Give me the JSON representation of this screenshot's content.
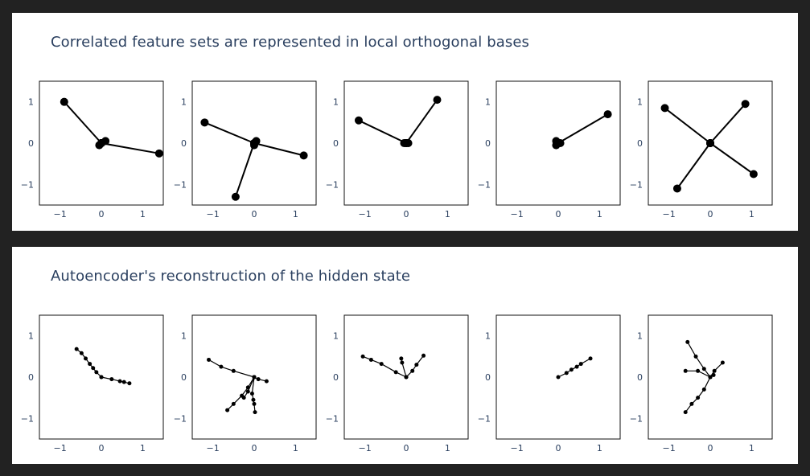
{
  "sections": [
    {
      "title": "Correlated feature sets are represented in local orthogonal bases",
      "marker_size": "large",
      "line_weight": "thick",
      "chart_data": [
        {
          "type": "scatter",
          "mode": "lines+markers",
          "xlim": [
            -1.5,
            1.5
          ],
          "ylim": [
            -1.5,
            1.5
          ],
          "xticks": [
            -1,
            0,
            1
          ],
          "yticks": [
            -1,
            0,
            1
          ],
          "xticklabels": [
            "−1",
            "0",
            "1"
          ],
          "yticklabels": [
            "−1",
            "0",
            "1"
          ],
          "segments": [
            [
              [
                0,
                0
              ],
              [
                -0.9,
                1.0
              ]
            ],
            [
              [
                0,
                0
              ],
              [
                1.4,
                -0.25
              ]
            ],
            [
              [
                0,
                0
              ],
              [
                0.1,
                0.05
              ]
            ],
            [
              [
                0,
                0
              ],
              [
                -0.05,
                -0.05
              ]
            ]
          ]
        },
        {
          "type": "scatter",
          "mode": "lines+markers",
          "xlim": [
            -1.5,
            1.5
          ],
          "ylim": [
            -1.5,
            1.5
          ],
          "xticks": [
            -1,
            0,
            1
          ],
          "yticks": [
            -1,
            0,
            1
          ],
          "xticklabels": [
            "−1",
            "0",
            "1"
          ],
          "yticklabels": [
            "−1",
            "0",
            "1"
          ],
          "segments": [
            [
              [
                0,
                0
              ],
              [
                -1.2,
                0.5
              ]
            ],
            [
              [
                0,
                0
              ],
              [
                1.2,
                -0.3
              ]
            ],
            [
              [
                0,
                0
              ],
              [
                -0.45,
                -1.3
              ]
            ],
            [
              [
                0,
                0
              ],
              [
                0.05,
                0.05
              ]
            ],
            [
              [
                0,
                0
              ],
              [
                0.0,
                -0.05
              ]
            ]
          ]
        },
        {
          "type": "scatter",
          "mode": "lines+markers",
          "xlim": [
            -1.5,
            1.5
          ],
          "ylim": [
            -1.5,
            1.5
          ],
          "xticks": [
            -1,
            0,
            1
          ],
          "yticks": [
            -1,
            0,
            1
          ],
          "xticklabels": [
            "−1",
            "0",
            "1"
          ],
          "yticklabels": [
            "−1",
            "0",
            "1"
          ],
          "segments": [
            [
              [
                0,
                0
              ],
              [
                -1.15,
                0.55
              ]
            ],
            [
              [
                0,
                0
              ],
              [
                0.75,
                1.05
              ]
            ],
            [
              [
                0,
                0
              ],
              [
                -0.05,
                0.0
              ]
            ],
            [
              [
                0,
                0
              ],
              [
                0.05,
                0.0
              ]
            ]
          ]
        },
        {
          "type": "scatter",
          "mode": "lines+markers",
          "xlim": [
            -1.5,
            1.5
          ],
          "ylim": [
            -1.5,
            1.5
          ],
          "xticks": [
            -1,
            0,
            1
          ],
          "yticks": [
            -1,
            0,
            1
          ],
          "xticklabels": [
            "−1",
            "0",
            "1"
          ],
          "yticklabels": [
            "−1",
            "0",
            "1"
          ],
          "segments": [
            [
              [
                0,
                0
              ],
              [
                1.2,
                0.7
              ]
            ],
            [
              [
                0,
                0
              ],
              [
                -0.05,
                0.05
              ]
            ],
            [
              [
                0,
                0
              ],
              [
                0.05,
                0.0
              ]
            ],
            [
              [
                0,
                0
              ],
              [
                -0.05,
                -0.05
              ]
            ]
          ]
        },
        {
          "type": "scatter",
          "mode": "lines+markers",
          "xlim": [
            -1.5,
            1.5
          ],
          "ylim": [
            -1.5,
            1.5
          ],
          "xticks": [
            -1,
            0,
            1
          ],
          "yticks": [
            -1,
            0,
            1
          ],
          "xticklabels": [
            "−1",
            "0",
            "1"
          ],
          "yticklabels": [
            "−1",
            "0",
            "1"
          ],
          "segments": [
            [
              [
                0,
                0
              ],
              [
                -1.1,
                0.85
              ]
            ],
            [
              [
                0,
                0
              ],
              [
                0.85,
                0.95
              ]
            ],
            [
              [
                0,
                0
              ],
              [
                1.05,
                -0.75
              ]
            ],
            [
              [
                0,
                0
              ],
              [
                -0.8,
                -1.1
              ]
            ]
          ]
        }
      ]
    },
    {
      "title": "Autoencoder's reconstruction of the hidden state",
      "marker_size": "small",
      "line_weight": "thin",
      "chart_data": [
        {
          "type": "scatter",
          "mode": "lines+markers",
          "xlim": [
            -1.5,
            1.5
          ],
          "ylim": [
            -1.5,
            1.5
          ],
          "xticks": [
            -1,
            0,
            1
          ],
          "yticks": [
            -1,
            0,
            1
          ],
          "xticklabels": [
            "−1",
            "0",
            "1"
          ],
          "yticklabels": [
            "−1",
            "0",
            "1"
          ],
          "polylines": [
            [
              [
                0.0,
                0.0
              ],
              [
                -0.12,
                0.12
              ],
              [
                -0.2,
                0.22
              ],
              [
                -0.28,
                0.32
              ],
              [
                -0.38,
                0.45
              ],
              [
                -0.48,
                0.58
              ],
              [
                -0.6,
                0.68
              ]
            ],
            [
              [
                0.0,
                0.0
              ],
              [
                0.25,
                -0.05
              ],
              [
                0.45,
                -0.1
              ],
              [
                0.55,
                -0.12
              ],
              [
                0.68,
                -0.15
              ]
            ]
          ]
        },
        {
          "type": "scatter",
          "mode": "lines+markers",
          "xlim": [
            -1.5,
            1.5
          ],
          "ylim": [
            -1.5,
            1.5
          ],
          "xticks": [
            -1,
            0,
            1
          ],
          "yticks": [
            -1,
            0,
            1
          ],
          "xticklabels": [
            "−1",
            "0",
            "1"
          ],
          "yticklabels": [
            "−1",
            "0",
            "1"
          ],
          "polylines": [
            [
              [
                0.0,
                0.0
              ],
              [
                -0.5,
                0.15
              ],
              [
                -0.8,
                0.25
              ],
              [
                -1.1,
                0.42
              ]
            ],
            [
              [
                0.0,
                0.0
              ],
              [
                0.1,
                -0.05
              ],
              [
                0.3,
                -0.1
              ]
            ],
            [
              [
                0.0,
                0.0
              ],
              [
                -0.15,
                -0.25
              ],
              [
                -0.3,
                -0.45
              ],
              [
                -0.5,
                -0.65
              ],
              [
                -0.65,
                -0.8
              ]
            ],
            [
              [
                0.0,
                0.0
              ],
              [
                -0.05,
                -0.4
              ],
              [
                -0.02,
                -0.55
              ],
              [
                0.0,
                -0.65
              ],
              [
                0.02,
                -0.85
              ]
            ],
            [
              [
                0.0,
                0.0
              ],
              [
                -0.15,
                -0.35
              ],
              [
                -0.25,
                -0.5
              ]
            ]
          ]
        },
        {
          "type": "scatter",
          "mode": "lines+markers",
          "xlim": [
            -1.5,
            1.5
          ],
          "ylim": [
            -1.5,
            1.5
          ],
          "xticks": [
            -1,
            0,
            1
          ],
          "yticks": [
            -1,
            0,
            1
          ],
          "xticklabels": [
            "−1",
            "0",
            "1"
          ],
          "yticklabels": [
            "−1",
            "0",
            "1"
          ],
          "polylines": [
            [
              [
                0.0,
                0.0
              ],
              [
                -0.25,
                0.12
              ],
              [
                -0.6,
                0.32
              ],
              [
                -0.85,
                0.42
              ],
              [
                -1.05,
                0.5
              ]
            ],
            [
              [
                0.0,
                0.0
              ],
              [
                0.15,
                0.15
              ],
              [
                0.25,
                0.3
              ],
              [
                0.42,
                0.52
              ]
            ],
            [
              [
                0.0,
                0.0
              ],
              [
                -0.1,
                0.35
              ],
              [
                -0.12,
                0.45
              ]
            ]
          ]
        },
        {
          "type": "scatter",
          "mode": "lines+markers",
          "xlim": [
            -1.5,
            1.5
          ],
          "ylim": [
            -1.5,
            1.5
          ],
          "xticks": [
            -1,
            0,
            1
          ],
          "yticks": [
            -1,
            0,
            1
          ],
          "xticklabels": [
            "−1",
            "0",
            "1"
          ],
          "yticklabels": [
            "−1",
            "0",
            "1"
          ],
          "polylines": [
            [
              [
                0.0,
                0.0
              ],
              [
                0.2,
                0.1
              ],
              [
                0.32,
                0.18
              ],
              [
                0.45,
                0.25
              ],
              [
                0.55,
                0.32
              ],
              [
                0.78,
                0.45
              ]
            ]
          ]
        },
        {
          "type": "scatter",
          "mode": "lines+markers",
          "xlim": [
            -1.5,
            1.5
          ],
          "ylim": [
            -1.5,
            1.5
          ],
          "xticks": [
            -1,
            0,
            1
          ],
          "yticks": [
            -1,
            0,
            1
          ],
          "xticklabels": [
            "−1",
            "0",
            "1"
          ],
          "yticklabels": [
            "−1",
            "0",
            "1"
          ],
          "polylines": [
            [
              [
                0.0,
                0.0
              ],
              [
                -0.15,
                0.2
              ],
              [
                -0.35,
                0.5
              ],
              [
                -0.55,
                0.85
              ]
            ],
            [
              [
                0.0,
                0.0
              ],
              [
                -0.3,
                0.15
              ],
              [
                -0.6,
                0.15
              ]
            ],
            [
              [
                0.0,
                0.0
              ],
              [
                0.1,
                0.15
              ],
              [
                0.3,
                0.35
              ]
            ],
            [
              [
                0.0,
                0.0
              ],
              [
                -0.15,
                -0.3
              ],
              [
                -0.3,
                -0.5
              ],
              [
                -0.45,
                -0.65
              ],
              [
                -0.6,
                -0.85
              ]
            ],
            [
              [
                0.0,
                0.0
              ],
              [
                0.08,
                0.05
              ]
            ]
          ]
        }
      ]
    }
  ]
}
